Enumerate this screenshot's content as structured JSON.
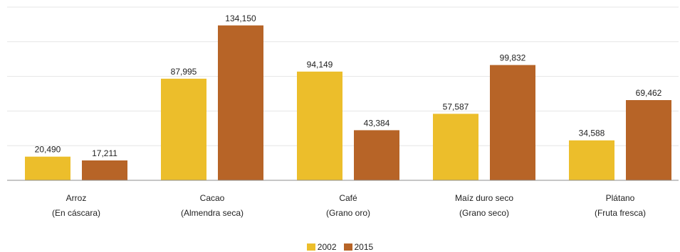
{
  "chart_data": {
    "type": "bar",
    "title": "",
    "xlabel": "",
    "ylabel": "",
    "categories": [
      [
        "Arroz",
        "(En cáscara)"
      ],
      [
        "Cacao",
        "(Almendra seca)"
      ],
      [
        "Café",
        "(Grano oro)"
      ],
      [
        "Maíz duro seco",
        "(Grano seco)"
      ],
      [
        "Plátano",
        "(Fruta fresca)"
      ]
    ],
    "series": [
      {
        "name": "2002",
        "color": "#ECBE2B",
        "values": [
          20490,
          87995,
          94149,
          57587,
          34588
        ],
        "labels": [
          "20,490",
          "87,995",
          "94,149",
          "57,587",
          "34,588"
        ]
      },
      {
        "name": "2015",
        "color": "#B76427",
        "values": [
          17211,
          134150,
          43384,
          99832,
          69462
        ],
        "labels": [
          "17,211",
          "134,150",
          "43,384",
          "99,832",
          "69,462"
        ]
      }
    ],
    "grid": true,
    "legend_position": "bottom-center"
  }
}
